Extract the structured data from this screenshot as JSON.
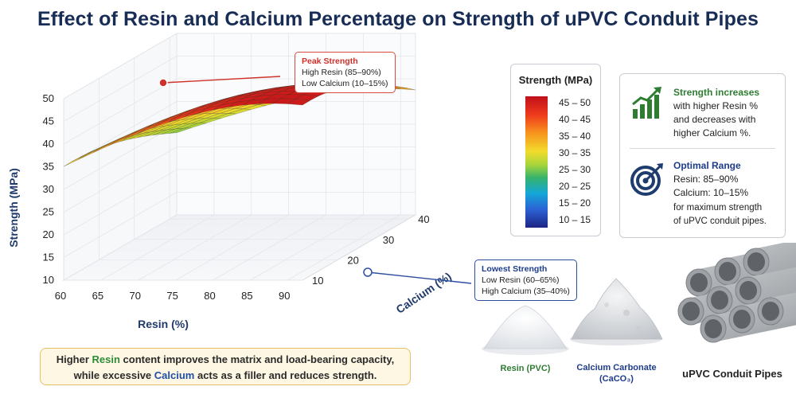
{
  "title": "Effect of Resin and Calcium Percentage on Strength of uPVC Conduit Pipes",
  "chart_data": {
    "type": "surface",
    "z_label": "Strength (MPa)",
    "x_label": "Resin (%)",
    "y_label": "Calcium (%)",
    "x_ticks": [
      "60",
      "65",
      "70",
      "75",
      "80",
      "85",
      "90"
    ],
    "y_ticks": [
      "10",
      "20",
      "30",
      "40"
    ],
    "z_ticks": [
      "10",
      "15",
      "20",
      "25",
      "30",
      "35",
      "40",
      "45",
      "50"
    ],
    "xlim": [
      60,
      92
    ],
    "ylim": [
      10,
      42
    ],
    "zlim": [
      10,
      50
    ],
    "peak": {
      "resin": 88,
      "calcium": 12,
      "strength": 49
    },
    "lowest": {
      "resin": 60,
      "calcium": 40,
      "strength": 12
    }
  },
  "callouts": {
    "peak": {
      "title": "Peak Strength",
      "line1": "High Resin (85–90%)",
      "line2": "Low Calcium (10–15%)"
    },
    "low": {
      "title": "Lowest Strength",
      "line1": "Low Resin (60–65%)",
      "line2": "High Calcium (35–40%)"
    }
  },
  "legend": {
    "title": "Strength (MPa)",
    "ranges": [
      "45 – 50",
      "40 – 45",
      "35 – 40",
      "30 – 35",
      "25 – 30",
      "20 – 25",
      "15 – 20",
      "10 – 15"
    ]
  },
  "info": {
    "trend_title": "Strength increases",
    "trend_text": [
      "with higher Resin %",
      "and decreases with",
      "higher Calcium %."
    ],
    "optimal_title": "Optimal Range",
    "optimal_resin": "Resin: 85–90%",
    "optimal_calcium": "Calcium: 10–15%",
    "optimal_text": [
      "for maximum strength",
      "of uPVC conduit pipes."
    ]
  },
  "note": {
    "p1": "Higher ",
    "resin": "Resin",
    "p2": " content improves the matrix and load-bearing capacity,",
    "p3": "while excessive ",
    "calcium": "Calcium",
    "p4": " acts as a filler and reduces strength."
  },
  "materials": {
    "resin": "Resin (PVC)",
    "caco3_line1": "Calcium Carbonate",
    "caco3_line2": "(CaCO₃)",
    "pipes": "uPVC Conduit Pipes"
  },
  "colors": {
    "title": "#172d55",
    "peak": "#d0302a",
    "low": "#1e3c8c",
    "resin": "#2e8b3a",
    "calcium": "#1f4fa8"
  }
}
